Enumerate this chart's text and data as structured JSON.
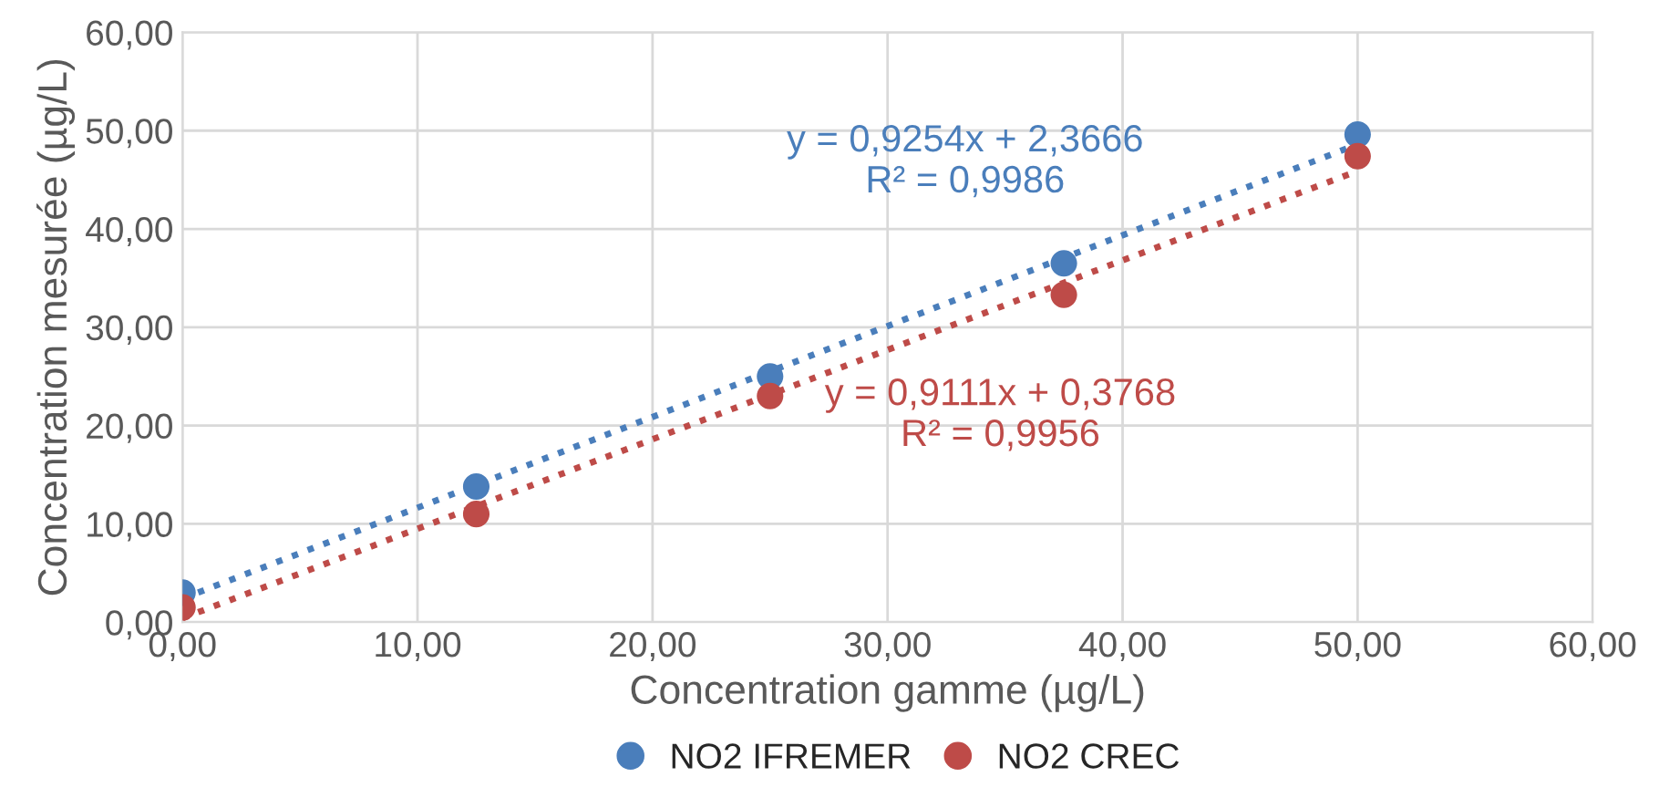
{
  "chart_data": {
    "type": "scatter",
    "xlabel": "Concentration gamme (µg/L)",
    "ylabel": "Concentration mesurée (µg/L)",
    "xlim": [
      0,
      60
    ],
    "ylim": [
      0,
      60
    ],
    "xticks": [
      {
        "value": 0,
        "label": "0,00"
      },
      {
        "value": 10,
        "label": "10,00"
      },
      {
        "value": 20,
        "label": "20,00"
      },
      {
        "value": 30,
        "label": "30,00"
      },
      {
        "value": 40,
        "label": "40,00"
      },
      {
        "value": 50,
        "label": "50,00"
      },
      {
        "value": 60,
        "label": "60,00"
      }
    ],
    "yticks": [
      {
        "value": 0,
        "label": "0,00"
      },
      {
        "value": 10,
        "label": "10,00"
      },
      {
        "value": 20,
        "label": "20,00"
      },
      {
        "value": 30,
        "label": "30,00"
      },
      {
        "value": 40,
        "label": "40,00"
      },
      {
        "value": 50,
        "label": "50,00"
      },
      {
        "value": 60,
        "label": "60,00"
      }
    ],
    "grid": true,
    "legend": "bottom",
    "marker": "circle",
    "series": [
      {
        "name": "NO2 IFREMER",
        "color": "#4a7ebb",
        "x": [
          0,
          12.5,
          25,
          37.5,
          50
        ],
        "values": [
          3.0,
          13.8,
          25.0,
          36.5,
          49.6
        ]
      },
      {
        "name": "NO2 CREC",
        "color": "#be4b48",
        "x": [
          0,
          12.5,
          25,
          37.5,
          50
        ],
        "values": [
          1.5,
          11.0,
          23.0,
          33.3,
          47.4
        ]
      },
      {
        "type": "line",
        "marker": "none",
        "line_style": "dotted",
        "color": "#4a7ebb",
        "x": [
          0,
          50
        ],
        "values": [
          2.4,
          48.6
        ]
      },
      {
        "type": "line",
        "marker": "none",
        "line_style": "dotted",
        "color": "#be4b48",
        "x": [
          0,
          50
        ],
        "values": [
          0.4,
          45.9
        ]
      }
    ],
    "annotations": [
      "y = 0,9254x + 2,3666\nR² = 0,9986",
      "y = 0,9111x + 0,3768\nR² = 0,9956"
    ]
  }
}
